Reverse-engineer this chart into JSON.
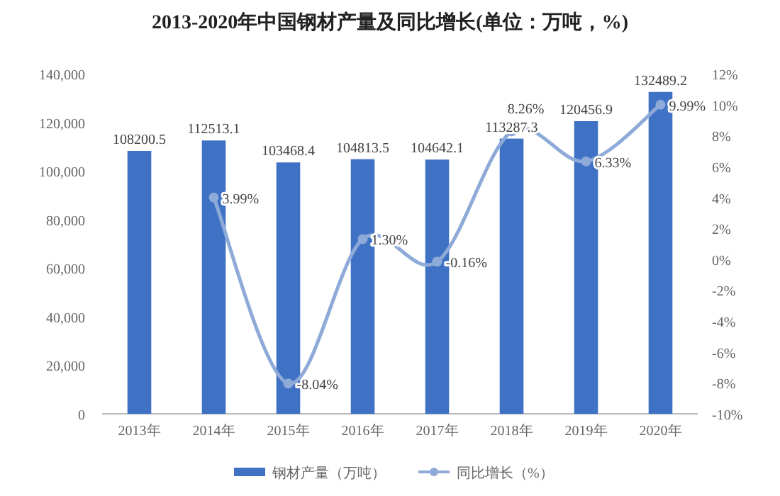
{
  "chart_data": {
    "type": "bar",
    "title": "2013-2020年中国钢材产量及同比增长(单位：万吨，%)",
    "categories": [
      "2013年",
      "2014年",
      "2015年",
      "2016年",
      "2017年",
      "2018年",
      "2019年",
      "2020年"
    ],
    "series": [
      {
        "name": "钢材产量（万吨）",
        "color": "#3f72c4",
        "values": [
          108200.5,
          112513.1,
          103468.4,
          104813.5,
          104642.1,
          113287.3,
          120456.9,
          132489.2
        ]
      },
      {
        "name": "同比增长（%）",
        "type": "line",
        "axis": "y2",
        "color": "#8eaad8",
        "marker": "circle",
        "values": [
          null,
          3.99,
          -8.04,
          1.3,
          -0.16,
          8.26,
          6.33,
          9.99
        ],
        "value_labels": [
          null,
          "3.99%",
          "-8.04%",
          "1.30%",
          "-0.16%",
          "8.26%",
          "6.33%",
          "9.99%"
        ]
      }
    ],
    "ylim": [
      0,
      140000
    ],
    "yticks": [
      0,
      {
        "value": 20000,
        "label": "20,000"
      },
      {
        "value": 40000,
        "label": "40,000"
      },
      {
        "value": 60000,
        "label": "60,000"
      },
      {
        "value": 80000,
        "label": "80,000"
      },
      {
        "value": 100000,
        "label": "100,000"
      },
      {
        "value": 120000,
        "label": "120,000"
      },
      {
        "value": 140000,
        "label": "140,000"
      }
    ],
    "y2lim": [
      -10,
      12
    ],
    "y2ticks": [
      {
        "value": -10,
        "label": "-10%"
      },
      {
        "value": -8,
        "label": "-8%"
      },
      {
        "value": -6,
        "label": "-6%"
      },
      {
        "value": -4,
        "label": "-4%"
      },
      {
        "value": -2,
        "label": "-2%"
      },
      {
        "value": 0,
        "label": "0%"
      },
      {
        "value": 2,
        "label": "2%"
      },
      {
        "value": 4,
        "label": "4%"
      },
      {
        "value": 6,
        "label": "6%"
      },
      {
        "value": 8,
        "label": "8%"
      },
      {
        "value": 10,
        "label": "10%"
      },
      {
        "value": 12,
        "label": "12%"
      }
    ],
    "data_labels": true,
    "legend": "bottom",
    "grid": false
  }
}
